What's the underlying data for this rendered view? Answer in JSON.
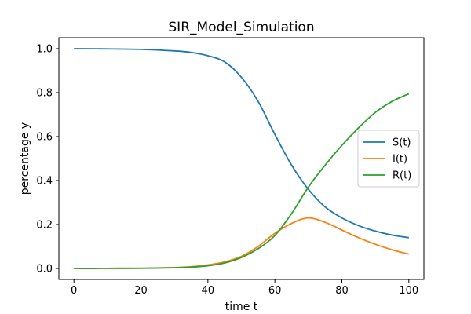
{
  "chart_data": {
    "type": "line",
    "title": "SIR_Model_Simulation",
    "xlabel": "time t",
    "ylabel": "percentage y",
    "xlim": [
      -4.5,
      104.5
    ],
    "ylim": [
      -0.05,
      1.05
    ],
    "xticks": [
      0,
      20,
      40,
      60,
      80,
      100
    ],
    "yticks": [
      0.0,
      0.2,
      0.4,
      0.6,
      0.8,
      1.0
    ],
    "xtick_labels": [
      "0",
      "20",
      "40",
      "60",
      "80",
      "100"
    ],
    "ytick_labels": [
      "0.0",
      "0.2",
      "0.4",
      "0.6",
      "0.8",
      "1.0"
    ],
    "grid": false,
    "legend_position": "center-right",
    "x": [
      0,
      10,
      20,
      30,
      35,
      40,
      45,
      50,
      55,
      60,
      65,
      70,
      75,
      80,
      85,
      90,
      95,
      100
    ],
    "series": [
      {
        "name": "S(t)",
        "color": "#1f77b4",
        "values": [
          1.0,
          0.999,
          0.997,
          0.99,
          0.983,
          0.968,
          0.94,
          0.87,
          0.76,
          0.61,
          0.47,
          0.36,
          0.28,
          0.23,
          0.195,
          0.17,
          0.152,
          0.14
        ]
      },
      {
        "name": "I(t)",
        "color": "#ff7f0e",
        "values": [
          0.0,
          0.0005,
          0.001,
          0.004,
          0.008,
          0.016,
          0.03,
          0.055,
          0.1,
          0.16,
          0.205,
          0.23,
          0.21,
          0.175,
          0.14,
          0.11,
          0.085,
          0.065
        ]
      },
      {
        "name": "R(t)",
        "color": "#2ca02c",
        "values": [
          0.0,
          0.0005,
          0.001,
          0.003,
          0.006,
          0.012,
          0.025,
          0.05,
          0.09,
          0.15,
          0.25,
          0.37,
          0.47,
          0.56,
          0.64,
          0.71,
          0.76,
          0.795
        ]
      }
    ]
  }
}
